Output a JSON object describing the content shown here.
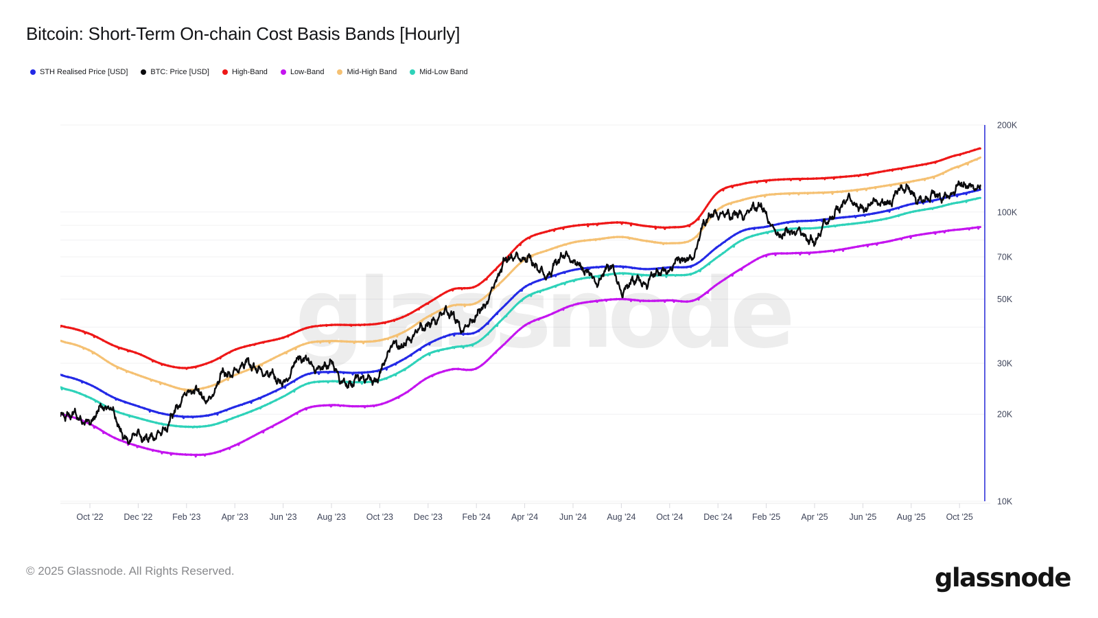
{
  "title": "Bitcoin: Short-Term On-chain Cost Basis Bands [Hourly]",
  "watermark": "glassnode",
  "footer": {
    "copyright": "© 2025 Glassnode. All Rights Reserved.",
    "logo_text": "glassnode"
  },
  "colors": {
    "sth": "#2329e6",
    "btc": "#0b0b0d",
    "high": "#ee1717",
    "low": "#c414ef",
    "mid_high": "#f5c173",
    "mid_low": "#2ed2b9",
    "right_axis_line": "#2e31d8",
    "grid": "#f0f0f2",
    "bottom_axis_line": "#e8e8ea",
    "tick_mark": "#d9d9de",
    "axis_label": "#3e4459"
  },
  "legend": [
    {
      "label": "STH Realised Price [USD]",
      "color_key": "sth"
    },
    {
      "label": "BTC: Price [USD]",
      "color_key": "btc"
    },
    {
      "label": "High-Band",
      "color_key": "high"
    },
    {
      "label": "Low-Band",
      "color_key": "low"
    },
    {
      "label": "Mid-High Band",
      "color_key": "mid_high"
    },
    {
      "label": "Mid-Low Band",
      "color_key": "mid_low"
    }
  ],
  "chart_data": {
    "type": "line",
    "title": "Bitcoin: Short-Term On-chain Cost Basis Bands [Hourly]",
    "x_axis": {
      "start": "Sep 2022",
      "end": "Oct 2025",
      "tick_interval_months": 2,
      "tick_labels": [
        "Oct '22",
        "Dec '22",
        "Feb '23",
        "Apr '23",
        "Jun '23",
        "Aug '23",
        "Oct '23",
        "Dec '23",
        "Feb '24",
        "Apr '24",
        "Jun '24",
        "Aug '24",
        "Oct '24",
        "Dec '24",
        "Feb '25",
        "Apr '25",
        "Jun '25",
        "Aug '25",
        "Oct '25"
      ]
    },
    "y_axis": {
      "scale": "log",
      "unit": "USD",
      "top_value_kusd": 200,
      "bottom_value_kusd": 10,
      "tick_labels": [
        {
          "label": "200K",
          "value": 200
        },
        {
          "label": "100K",
          "value": 100
        },
        {
          "label": "70K",
          "value": 70
        },
        {
          "label": "50K",
          "value": 50
        },
        {
          "label": "30K",
          "value": 30
        },
        {
          "label": "20K",
          "value": 20
        },
        {
          "label": "10K",
          "value": 10
        }
      ],
      "gridline_values": [
        200,
        100,
        90,
        80,
        70,
        60,
        50,
        40,
        30,
        20,
        10
      ]
    },
    "anchor_months": [
      "2022-09",
      "2022-10",
      "2022-11",
      "2022-12",
      "2023-01",
      "2023-02",
      "2023-03",
      "2023-04",
      "2023-05",
      "2023-06",
      "2023-07",
      "2023-08",
      "2023-09",
      "2023-10",
      "2023-11",
      "2023-12",
      "2024-01",
      "2024-02",
      "2024-03",
      "2024-04",
      "2024-05",
      "2024-06",
      "2024-07",
      "2024-08",
      "2024-09",
      "2024-10",
      "2024-11",
      "2024-12",
      "2025-01",
      "2025-02",
      "2025-03",
      "2025-04",
      "2025-05",
      "2025-06",
      "2025-07",
      "2025-08",
      "2025-09",
      "2025-10"
    ],
    "series": [
      {
        "key": "low",
        "name": "Low-Band",
        "color_key": "low",
        "resolution": "monthly",
        "z": 1,
        "width": 3,
        "values_kusd": [
          19.8,
          18.5,
          16.6,
          15.5,
          14.8,
          14.5,
          14.6,
          15.6,
          17.2,
          19.0,
          21.0,
          21.5,
          21.3,
          21.6,
          23.5,
          26.8,
          28.6,
          28.8,
          34.0,
          40.5,
          44.0,
          47.7,
          49.3,
          50.0,
          49.3,
          49.5,
          49.5,
          56.5,
          64.0,
          71.0,
          72.0,
          72.5,
          74.0,
          76.5,
          79.0,
          82.5,
          85.0,
          87.0
        ]
      },
      {
        "key": "mid_low",
        "name": "Mid-Low Band",
        "color_key": "mid_low",
        "resolution": "monthly",
        "z": 2,
        "width": 3,
        "values_kusd": [
          24.4,
          22.8,
          20.6,
          19.4,
          18.5,
          18.1,
          18.3,
          19.5,
          21.0,
          23.0,
          25.5,
          26.0,
          25.8,
          26.2,
          28.5,
          32.3,
          34.0,
          35.3,
          42.0,
          50.5,
          54.5,
          58.0,
          60.0,
          61.4,
          60.5,
          60.5,
          61.5,
          70.0,
          80.0,
          85.0,
          87.5,
          88.0,
          90.0,
          92.0,
          95.0,
          100.0,
          103.5,
          108.0
        ]
      },
      {
        "key": "mid_high",
        "name": "Mid-High Band",
        "color_key": "mid_high",
        "resolution": "monthly",
        "z": 3,
        "width": 3,
        "values_kusd": [
          35.4,
          33.2,
          29.5,
          27.3,
          25.6,
          24.3,
          25.0,
          27.3,
          29.5,
          32.4,
          35.2,
          35.8,
          35.6,
          36.0,
          38.5,
          43.5,
          47.5,
          48.5,
          57.0,
          68.5,
          74.0,
          78.5,
          80.5,
          82.0,
          79.5,
          78.0,
          81.0,
          102.0,
          110.0,
          114.5,
          116.0,
          116.5,
          117.5,
          120.0,
          123.5,
          127.5,
          133.0,
          144.0
        ]
      },
      {
        "key": "high",
        "name": "High-Band",
        "color_key": "high",
        "resolution": "monthly",
        "z": 4,
        "width": 3,
        "values_kusd": [
          40.0,
          37.9,
          34.5,
          32.4,
          29.8,
          28.9,
          30.3,
          33.4,
          35.2,
          36.8,
          39.8,
          40.7,
          40.7,
          41.2,
          43.5,
          48.5,
          54.0,
          55.5,
          66.0,
          80.0,
          86.0,
          89.5,
          91.0,
          92.0,
          89.5,
          88.5,
          92.0,
          117.0,
          125.0,
          128.5,
          130.0,
          130.5,
          132.0,
          134.5,
          139.0,
          143.5,
          149.0,
          158.0
        ]
      },
      {
        "key": "sth",
        "name": "STH Realised Price [USD]",
        "color_key": "sth",
        "resolution": "monthly",
        "z": 5,
        "width": 3,
        "values_kusd": [
          27.0,
          25.3,
          22.8,
          21.3,
          20.1,
          19.6,
          19.9,
          21.2,
          22.7,
          24.8,
          27.5,
          28.0,
          27.8,
          28.4,
          31.0,
          35.0,
          37.8,
          38.5,
          46.0,
          55.0,
          59.5,
          63.0,
          64.5,
          64.8,
          63.5,
          64.4,
          65.5,
          76.0,
          86.0,
          89.0,
          92.5,
          93.5,
          95.5,
          97.5,
          101.0,
          106.5,
          110.0,
          115.0
        ]
      },
      {
        "key": "btc",
        "name": "BTC: Price [USD]",
        "color_key": "btc",
        "resolution": "semi-monthly",
        "z": 6,
        "width": 2.4,
        "values_kusd": [
          19.8,
          19.3,
          19.2,
          20.6,
          20.5,
          16.0,
          17.1,
          16.7,
          17.0,
          20.9,
          23.0,
          24.3,
          22.4,
          27.5,
          28.3,
          29.4,
          29.0,
          26.9,
          25.8,
          30.2,
          30.3,
          29.2,
          29.1,
          26.1,
          25.9,
          26.6,
          27.6,
          34.0,
          35.5,
          37.5,
          41.5,
          43.5,
          44.0,
          40.0,
          43.0,
          51.5,
          62.0,
          71.0,
          69.0,
          64.0,
          62.0,
          68.5,
          69.5,
          62.0,
          57.5,
          66.0,
          52.5,
          60.0,
          55.0,
          63.5,
          62.5,
          69.0,
          72.0,
          92.0,
          101.0,
          95.5,
          99.0,
          104.0,
          97.0,
          85.0,
          83.5,
          86.5,
          77.5,
          93.5,
          103.0,
          108.5,
          104.5,
          106.0,
          109.0,
          118.0,
          117.0,
          110.5,
          112.5,
          115.5,
          121.0,
          123.5
        ]
      }
    ]
  }
}
